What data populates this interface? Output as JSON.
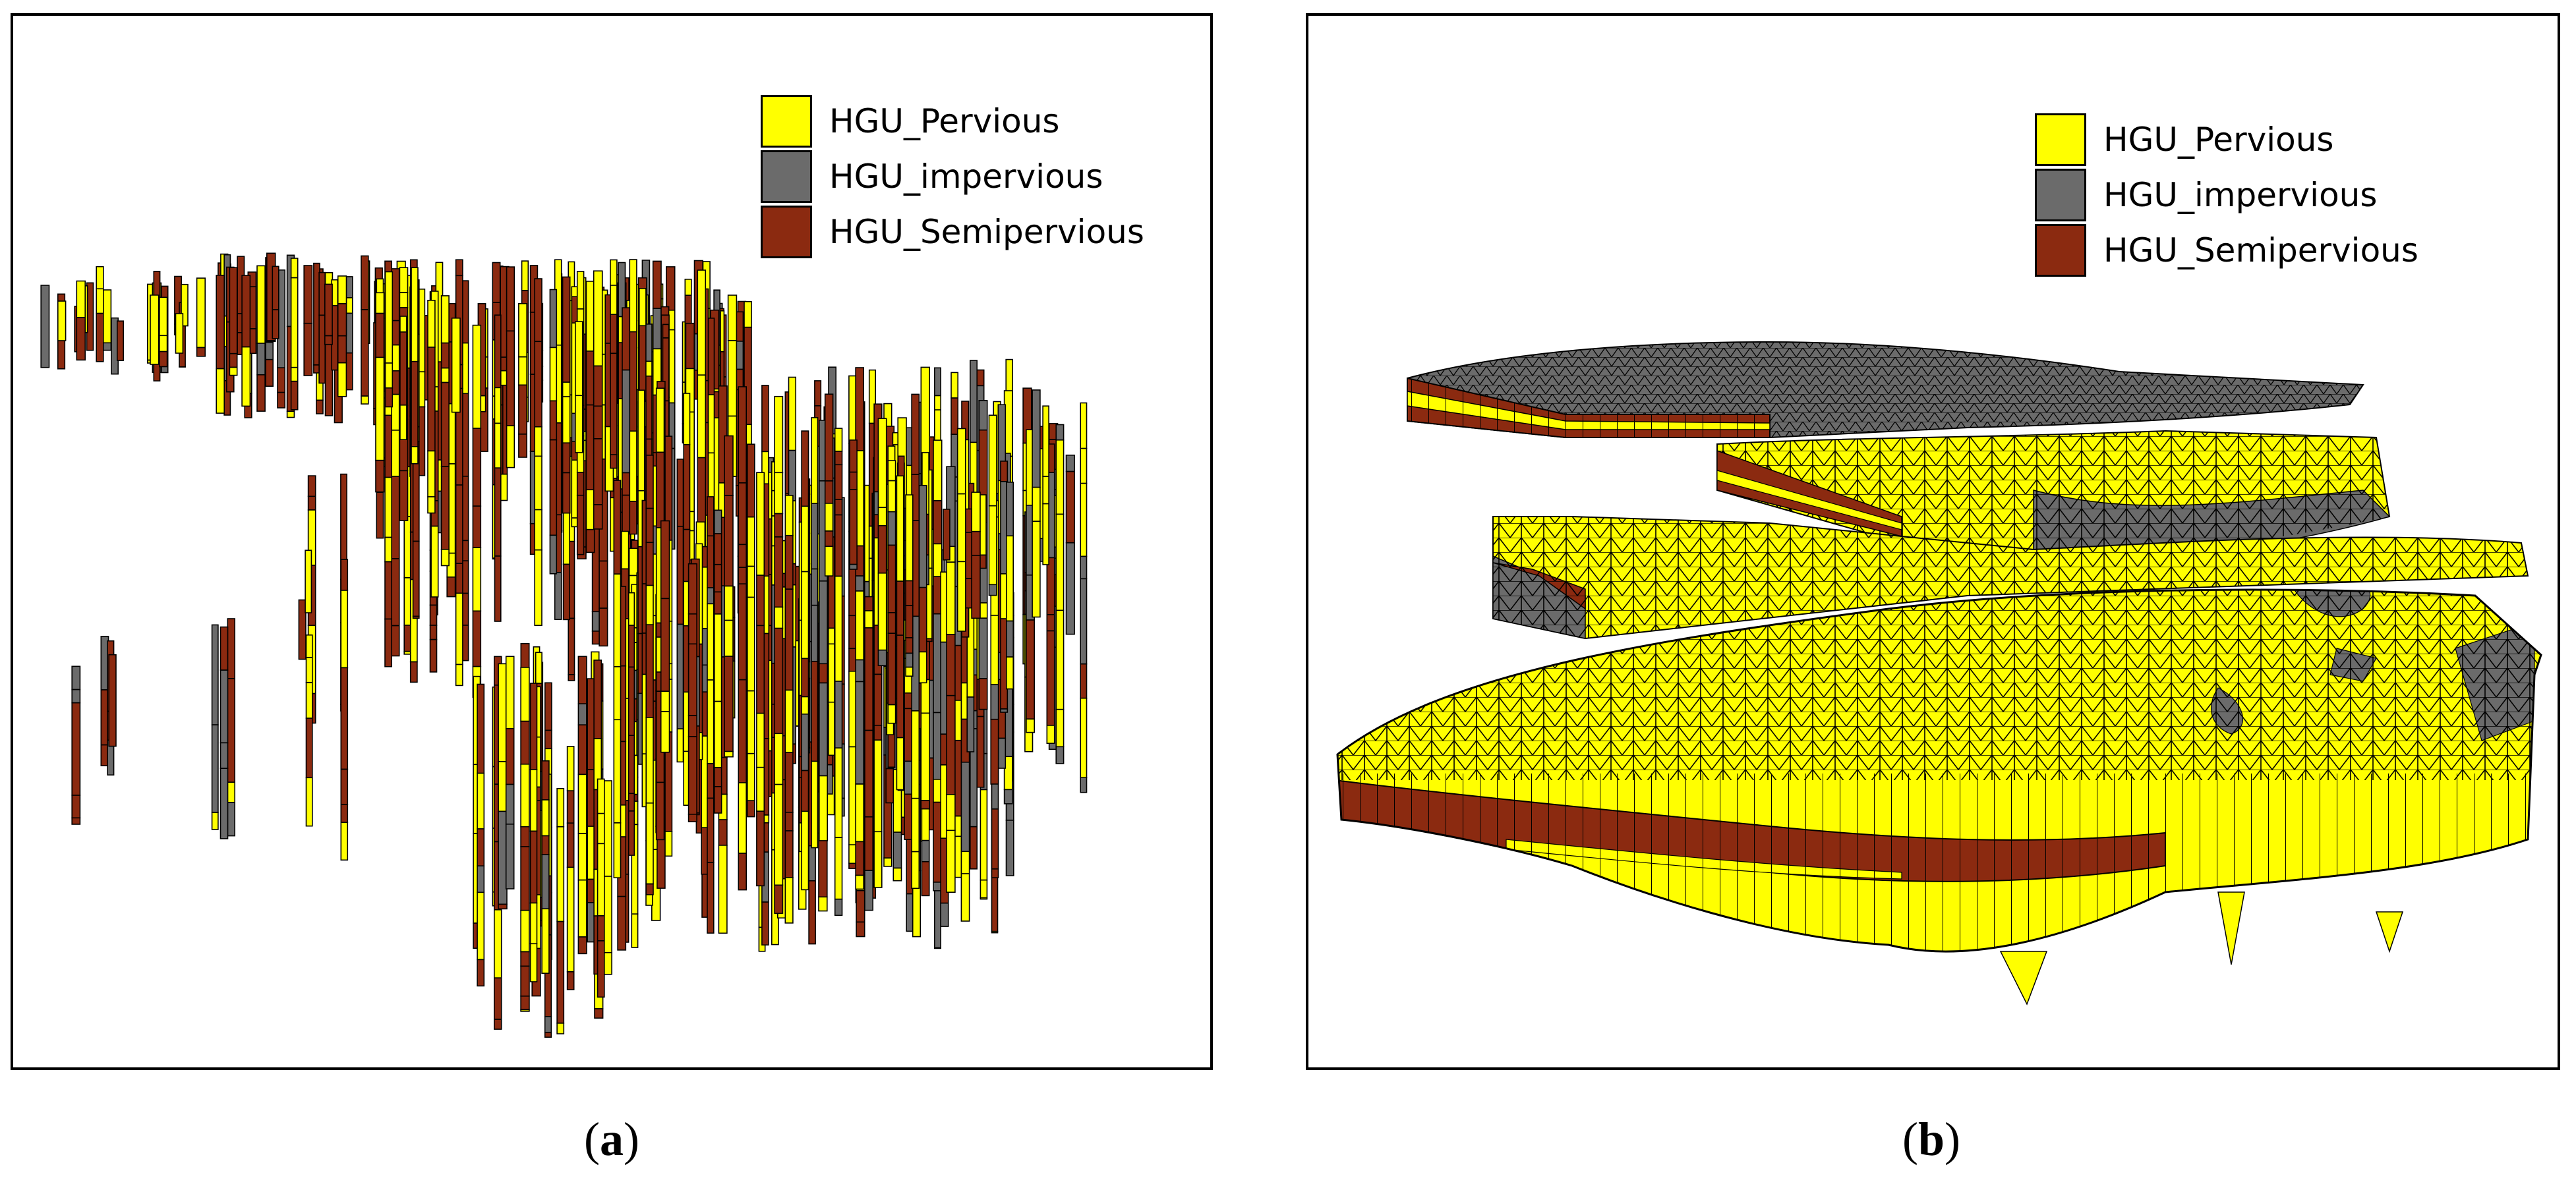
{
  "colors": {
    "pervious": "#ffff00",
    "impervious": "#6b6b6b",
    "semipervious": "#8b2a10"
  },
  "panels": [
    {
      "id": "a",
      "legend": [
        {
          "label": "HGU_Pervious",
          "color": "#ffff00"
        },
        {
          "label": "HGU_impervious",
          "color": "#6b6b6b"
        },
        {
          "label": "HGU_Semipervious",
          "color": "#8b2a10"
        }
      ],
      "caption_open": "(",
      "caption_letter": "a",
      "caption_close": ")"
    },
    {
      "id": "b",
      "legend": [
        {
          "label": "HGU_Pervious",
          "color": "#ffff00"
        },
        {
          "label": "HGU_impervious",
          "color": "#6b6b6b"
        },
        {
          "label": "HGU_Semipervious",
          "color": "#8b2a10"
        }
      ],
      "caption_open": "(",
      "caption_letter": "b",
      "caption_close": ")"
    }
  ]
}
